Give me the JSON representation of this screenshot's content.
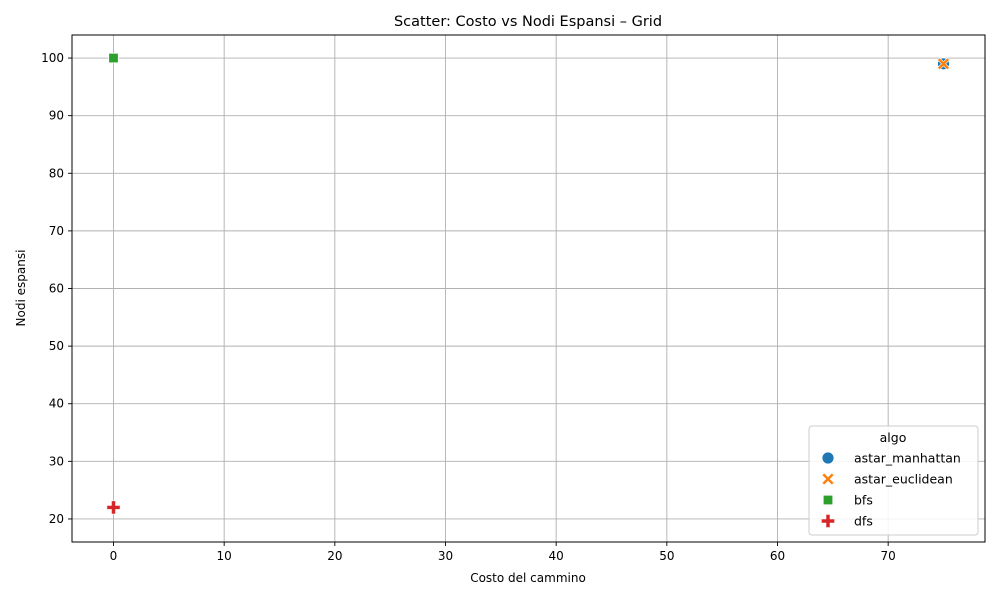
{
  "chart_data": {
    "type": "scatter",
    "title": "Scatter: Costo vs Nodi Espansi – Grid",
    "xlabel": "Costo del cammino",
    "ylabel": "Nodi espansi",
    "xlim": [
      -3.75,
      78.75
    ],
    "ylim": [
      16,
      104
    ],
    "xticks": [
      0,
      10,
      20,
      30,
      40,
      50,
      60,
      70
    ],
    "yticks": [
      20,
      30,
      40,
      50,
      60,
      70,
      80,
      90,
      100
    ],
    "grid": true,
    "legend": {
      "title": "algo",
      "placement": "lower-right"
    },
    "series": [
      {
        "name": "astar_manhattan",
        "marker": "circle",
        "color": "#1f77b4",
        "points": [
          {
            "x": 75,
            "y": 99
          }
        ]
      },
      {
        "name": "astar_euclidean",
        "marker": "x",
        "color": "#ff7f0e",
        "points": [
          {
            "x": 75,
            "y": 99
          }
        ]
      },
      {
        "name": "bfs",
        "marker": "square",
        "color": "#2ca02c",
        "points": [
          {
            "x": 0,
            "y": 100
          }
        ]
      },
      {
        "name": "dfs",
        "marker": "plus",
        "color": "#d62728",
        "points": [
          {
            "x": 0,
            "y": 22
          }
        ]
      }
    ]
  }
}
